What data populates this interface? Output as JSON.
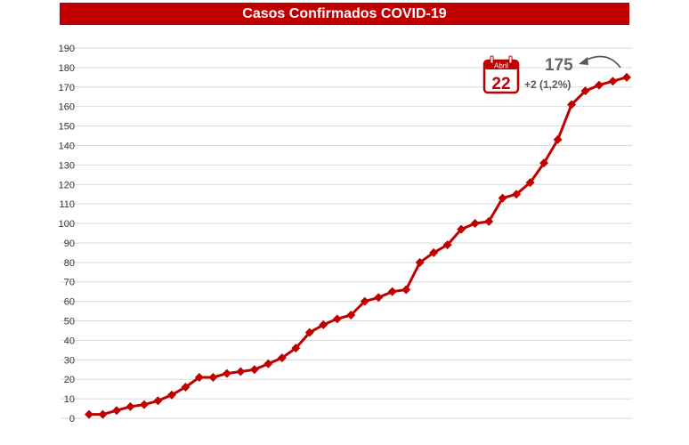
{
  "chart_data": {
    "type": "line",
    "title": "Casos Confirmados COVID-19",
    "xlabel": "",
    "ylabel": "",
    "ylim": [
      0,
      190
    ],
    "yticks": [
      0,
      10,
      20,
      30,
      40,
      50,
      60,
      70,
      80,
      90,
      100,
      110,
      120,
      130,
      140,
      150,
      160,
      170,
      180,
      190
    ],
    "grid": true,
    "series": [
      {
        "name": "",
        "color": "#c00000",
        "values": [
          2,
          2,
          4,
          6,
          7,
          9,
          12,
          16,
          21,
          21,
          23,
          24,
          25,
          28,
          31,
          36,
          44,
          48,
          51,
          53,
          60,
          62,
          65,
          66,
          80,
          85,
          89,
          97,
          100,
          101,
          113,
          115,
          121,
          131,
          143,
          161,
          168,
          171,
          173,
          175
        ]
      }
    ],
    "annotation": {
      "calendar_month": "Abril",
      "calendar_day": "22",
      "latest_value": "175",
      "latest_change": "+2 (1,2%)"
    }
  },
  "colors": {
    "accent": "#c00000",
    "grid": "#d9d9d9",
    "text": "#333333"
  },
  "icons": {
    "calendar": "calendar-icon",
    "arrow": "curved-arrow-icon"
  }
}
